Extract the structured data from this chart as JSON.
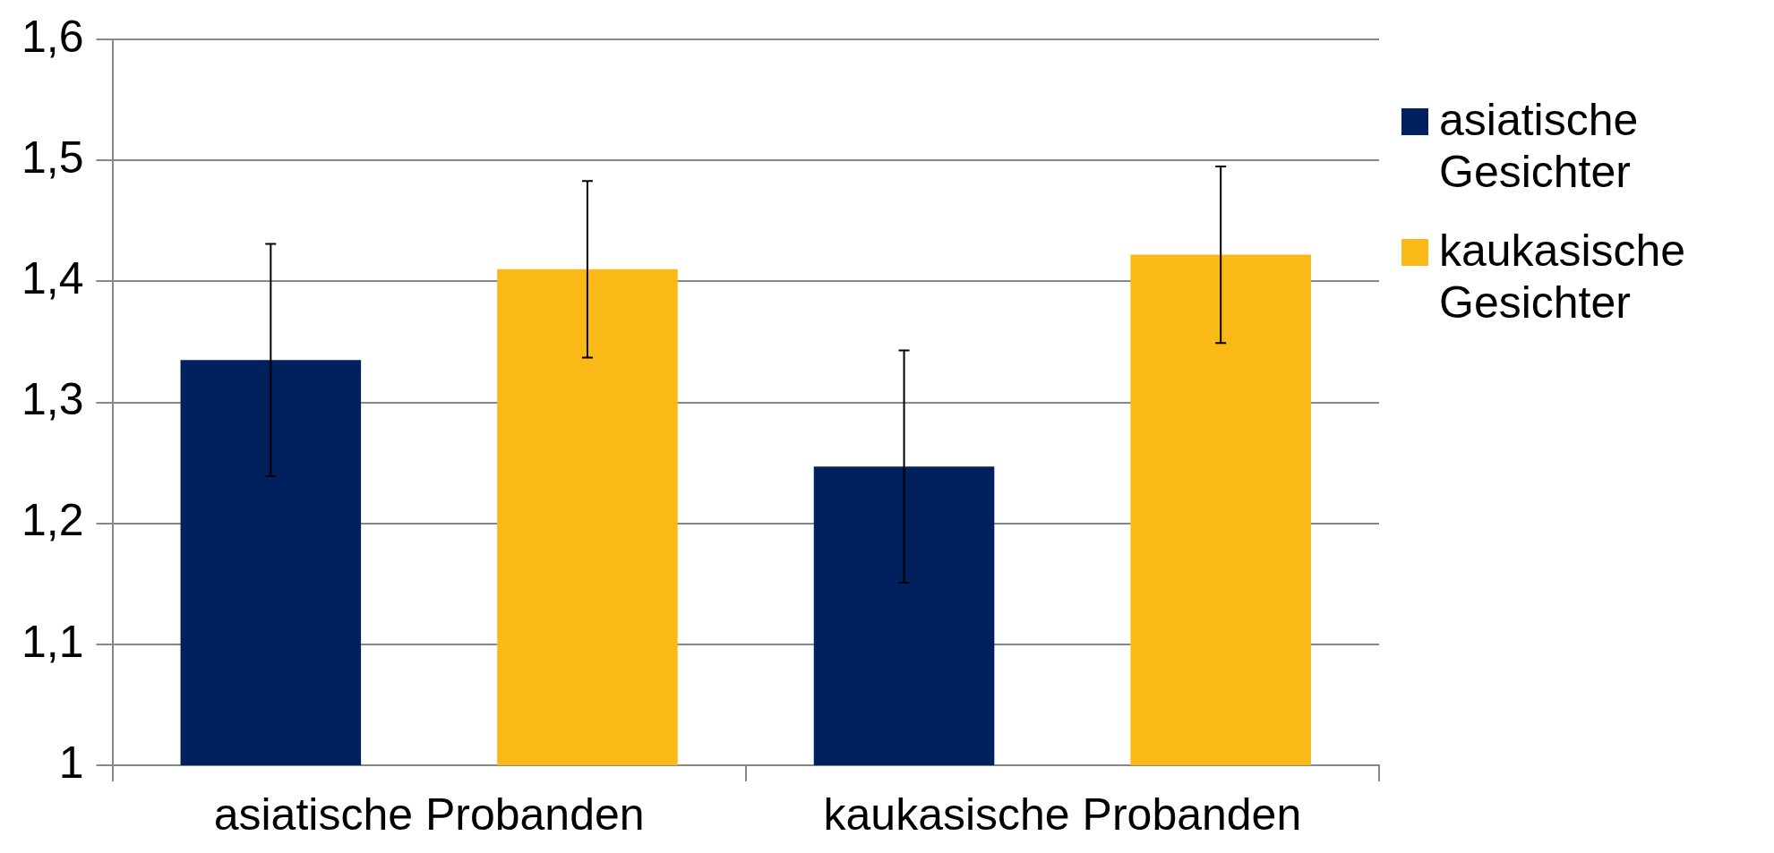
{
  "chart_data": {
    "type": "bar",
    "categories": [
      "asiatische Probanden",
      "kaukasische Probanden"
    ],
    "series": [
      {
        "name": "asiatische Gesichter",
        "color": "#00215e",
        "values": [
          1.335,
          1.247
        ],
        "errors": [
          0.096,
          0.096
        ]
      },
      {
        "name": "kaukasische Gesichter",
        "color": "#fbb918",
        "values": [
          1.41,
          1.422
        ],
        "errors": [
          0.073,
          0.073
        ]
      }
    ],
    "ylim": [
      1,
      1.6
    ],
    "yticks": [
      {
        "value": 1,
        "label": "1"
      },
      {
        "value": 1.1,
        "label": "1,1"
      },
      {
        "value": 1.2,
        "label": "1,2"
      },
      {
        "value": 1.3,
        "label": "1,3"
      },
      {
        "value": 1.4,
        "label": "1,4"
      },
      {
        "value": 1.5,
        "label": "1,5"
      },
      {
        "value": 1.6,
        "label": "1,6"
      }
    ],
    "grid": "y",
    "legend": "right"
  }
}
